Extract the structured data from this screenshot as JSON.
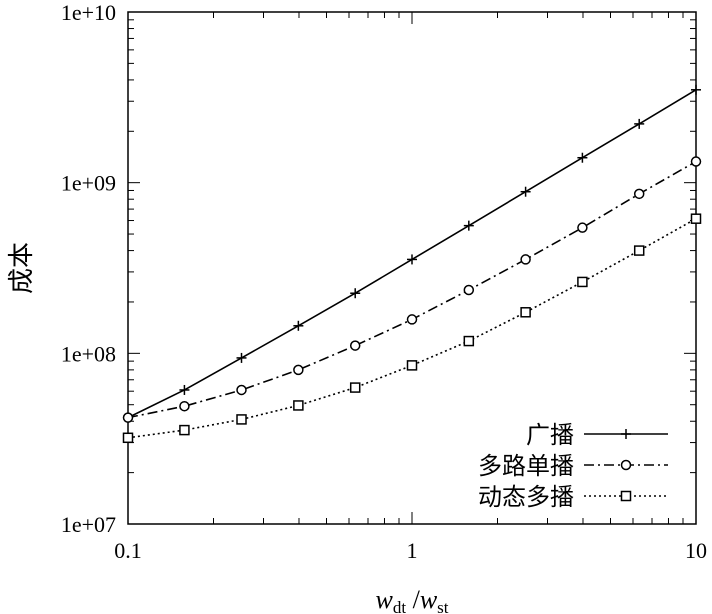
{
  "chart_data": {
    "type": "line",
    "title": "",
    "xlabel": {
      "base1": "w",
      "sub1": "dt",
      "sep": " /",
      "base2": "w",
      "sub2": "st"
    },
    "ylabel": "成本",
    "xscale": "log",
    "yscale": "log",
    "xlim": [
      0.1,
      10
    ],
    "ylim": [
      10000000,
      10000000000
    ],
    "xticks": [
      {
        "value": 0.1,
        "label": "0.1"
      },
      {
        "value": 1,
        "label": "1"
      },
      {
        "value": 10,
        "label": "10"
      }
    ],
    "yticks": [
      {
        "value": 10000000,
        "label": "1e+07"
      },
      {
        "value": 100000000,
        "label": "1e+08"
      },
      {
        "value": 1000000000,
        "label": "1e+09"
      },
      {
        "value": 10000000000,
        "label": "1e+10"
      }
    ],
    "grid": false,
    "legend_position": "bottom-right",
    "x": [
      0.1,
      0.158,
      0.251,
      0.398,
      0.631,
      1,
      1.585,
      2.512,
      3.981,
      6.31,
      10
    ],
    "series": [
      {
        "name": "广播",
        "line_style": "solid",
        "marker": "plus",
        "color": "#000000",
        "values": [
          42000000,
          61000000,
          94000000,
          145000000,
          225000000,
          355000000,
          560000000,
          885000000,
          1400000000,
          2210000000,
          3500000000
        ]
      },
      {
        "name": "多路单播",
        "line_style": "dash-dot",
        "marker": "circle",
        "color": "#000000",
        "values": [
          42000000,
          49000000,
          61000000,
          80000000,
          111000000,
          158000000,
          235000000,
          355000000,
          545000000,
          860000000,
          1330000000
        ]
      },
      {
        "name": "动态多播",
        "line_style": "dotted",
        "marker": "square",
        "color": "#000000",
        "values": [
          32000000,
          35500000,
          41000000,
          49500000,
          63000000,
          85000000,
          118000000,
          174000000,
          262000000,
          400000000,
          615000000
        ]
      }
    ]
  }
}
